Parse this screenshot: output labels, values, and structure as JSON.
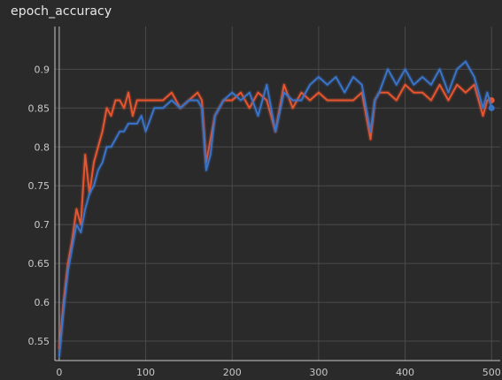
{
  "title": "epoch_accuracy",
  "colors": {
    "background": "#2a2a2a",
    "grid": "#4a4a4a",
    "axis": "#c8c8c8",
    "orange": "#e8552e",
    "blue": "#3a74c9"
  },
  "chart_data": {
    "type": "line",
    "title": "epoch_accuracy",
    "xlabel": "",
    "ylabel": "",
    "xlim": [
      -5,
      510
    ],
    "ylim": [
      0.525,
      0.955
    ],
    "grid": true,
    "x_ticks": [
      "0",
      "100",
      "200",
      "300",
      "400",
      "500"
    ],
    "y_ticks": [
      "0.55",
      "0.6",
      "0.65",
      "0.7",
      "0.75",
      "0.8",
      "0.85",
      "0.9"
    ],
    "series": [
      {
        "color": "#e8552e",
        "x": [
          0,
          5,
          10,
          15,
          20,
          25,
          30,
          35,
          40,
          45,
          50,
          55,
          60,
          65,
          70,
          75,
          80,
          85,
          90,
          95,
          100,
          110,
          120,
          130,
          140,
          150,
          160,
          165,
          170,
          175,
          180,
          190,
          200,
          210,
          220,
          230,
          240,
          250,
          260,
          270,
          280,
          290,
          300,
          310,
          320,
          330,
          340,
          350,
          360,
          365,
          370,
          380,
          390,
          400,
          410,
          420,
          430,
          440,
          450,
          460,
          470,
          480,
          490,
          495,
          500
        ],
        "values": [
          0.54,
          0.6,
          0.65,
          0.68,
          0.72,
          0.7,
          0.79,
          0.74,
          0.78,
          0.8,
          0.82,
          0.85,
          0.84,
          0.86,
          0.86,
          0.85,
          0.87,
          0.84,
          0.86,
          0.86,
          0.86,
          0.86,
          0.86,
          0.87,
          0.85,
          0.86,
          0.87,
          0.86,
          0.78,
          0.81,
          0.84,
          0.86,
          0.86,
          0.87,
          0.85,
          0.87,
          0.86,
          0.82,
          0.88,
          0.85,
          0.87,
          0.86,
          0.87,
          0.86,
          0.86,
          0.86,
          0.86,
          0.87,
          0.81,
          0.86,
          0.87,
          0.87,
          0.86,
          0.88,
          0.87,
          0.87,
          0.86,
          0.88,
          0.86,
          0.88,
          0.87,
          0.88,
          0.84,
          0.86,
          0.86
        ]
      },
      {
        "color": "#3a74c9",
        "x": [
          0,
          5,
          10,
          15,
          20,
          25,
          30,
          35,
          40,
          45,
          50,
          55,
          60,
          65,
          70,
          75,
          80,
          85,
          90,
          95,
          100,
          110,
          120,
          130,
          140,
          150,
          160,
          165,
          170,
          175,
          180,
          190,
          200,
          210,
          220,
          230,
          240,
          250,
          260,
          270,
          280,
          290,
          300,
          310,
          320,
          330,
          340,
          350,
          360,
          365,
          370,
          380,
          390,
          400,
          410,
          420,
          430,
          440,
          450,
          460,
          470,
          480,
          490,
          495,
          500
        ],
        "values": [
          0.53,
          0.59,
          0.64,
          0.67,
          0.7,
          0.69,
          0.72,
          0.74,
          0.75,
          0.77,
          0.78,
          0.8,
          0.8,
          0.81,
          0.82,
          0.82,
          0.83,
          0.83,
          0.83,
          0.84,
          0.82,
          0.85,
          0.85,
          0.86,
          0.85,
          0.86,
          0.86,
          0.85,
          0.77,
          0.79,
          0.84,
          0.86,
          0.87,
          0.86,
          0.87,
          0.84,
          0.88,
          0.82,
          0.87,
          0.86,
          0.86,
          0.88,
          0.89,
          0.88,
          0.89,
          0.87,
          0.89,
          0.88,
          0.82,
          0.86,
          0.87,
          0.9,
          0.88,
          0.9,
          0.88,
          0.89,
          0.88,
          0.9,
          0.87,
          0.9,
          0.91,
          0.89,
          0.85,
          0.87,
          0.85
        ]
      }
    ]
  }
}
